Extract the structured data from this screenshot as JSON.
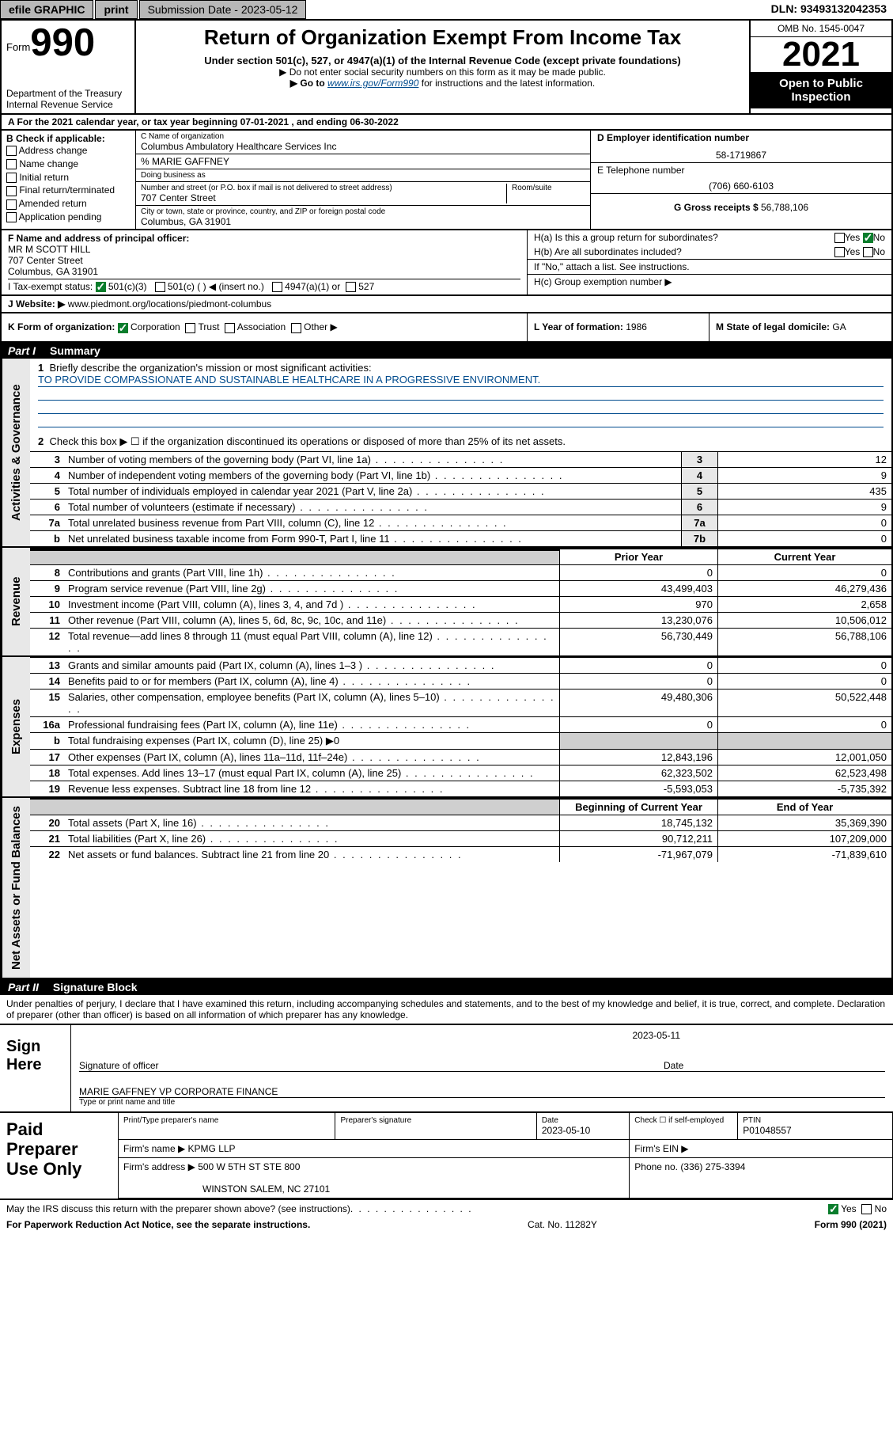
{
  "topbar": {
    "efile": "efile GRAPHIC",
    "print": "print",
    "submission": "Submission Date - 2023-05-12",
    "dln": "DLN: 93493132042353"
  },
  "header": {
    "form_prefix": "Form",
    "form_number": "990",
    "dept": "Department of the Treasury",
    "irs": "Internal Revenue Service",
    "title": "Return of Organization Exempt From Income Tax",
    "subtitle": "Under section 501(c), 527, or 4947(a)(1) of the Internal Revenue Code (except private foundations)",
    "note1": "▶ Do not enter social security numbers on this form as it may be made public.",
    "note2_prefix": "▶ Go to ",
    "note2_link": "www.irs.gov/Form990",
    "note2_suffix": " for instructions and the latest information.",
    "omb": "OMB No. 1545-0047",
    "year": "2021",
    "open": "Open to Public Inspection"
  },
  "row_a": "A For the 2021 calendar year, or tax year beginning 07-01-2021    , and ending 06-30-2022",
  "col_b": {
    "label": "B Check if applicable:",
    "addr": "Address change",
    "name": "Name change",
    "initial": "Initial return",
    "final": "Final return/terminated",
    "amended": "Amended return",
    "app": "Application pending"
  },
  "col_c": {
    "c_label": "C Name of organization",
    "c_val": "Columbus Ambulatory Healthcare Services Inc",
    "pct": "% MARIE GAFFNEY",
    "dba": "Doing business as",
    "street_label": "Number and street (or P.O. box if mail is not delivered to street address)",
    "room": "Room/suite",
    "street_val": "707 Center Street",
    "city_label": "City or town, state or province, country, and ZIP or foreign postal code",
    "city_val": "Columbus, GA  31901"
  },
  "col_right": {
    "d_label": "D Employer identification number",
    "d_val": "58-1719867",
    "e_label": "E Telephone number",
    "e_val": "(706) 660-6103",
    "g_label": "G Gross receipts $ ",
    "g_val": "56,788,106"
  },
  "f": {
    "label": "F  Name and address of principal officer:",
    "name": "MR M SCOTT HILL",
    "street": "707 Center Street",
    "city": "Columbus, GA  31901"
  },
  "h": {
    "a": "H(a)  Is this a group return for subordinates?",
    "a_yes": "Yes",
    "a_no": "No",
    "b": "H(b)  Are all subordinates included?",
    "b_yes": "Yes",
    "b_no": "No",
    "b_note": "If \"No,\" attach a list. See instructions.",
    "c": "H(c)  Group exemption number ▶"
  },
  "i": {
    "label": "I    Tax-exempt status:",
    "c3": "501(c)(3)",
    "c": "501(c) (  ) ◀ (insert no.)",
    "a1": "4947(a)(1) or",
    "s527": "527"
  },
  "j": {
    "label": "J   Website: ▶ ",
    "val": "www.piedmont.org/locations/piedmont-columbus"
  },
  "k": {
    "label": "K Form of organization:",
    "corp": "Corporation",
    "trust": "Trust",
    "assoc": "Association",
    "other": "Other ▶"
  },
  "l": {
    "label": "L Year of formation: ",
    "val": "1986"
  },
  "m": {
    "label": "M State of legal domicile: ",
    "val": "GA"
  },
  "part1": {
    "bar": "Part I",
    "title": "Summary",
    "l1": "Briefly describe the organization's mission or most significant activities:",
    "l1_text": "TO PROVIDE COMPASSIONATE AND SUSTAINABLE HEALTHCARE IN A PROGRESSIVE ENVIRONMENT.",
    "l2": "Check this box ▶ ☐  if the organization discontinued its operations or disposed of more than 25% of its net assets.",
    "rows_gov": [
      {
        "n": "3",
        "t": "Number of voting members of the governing body (Part VI, line 1a)",
        "box": "3",
        "v": "12"
      },
      {
        "n": "4",
        "t": "Number of independent voting members of the governing body (Part VI, line 1b)",
        "box": "4",
        "v": "9"
      },
      {
        "n": "5",
        "t": "Total number of individuals employed in calendar year 2021 (Part V, line 2a)",
        "box": "5",
        "v": "435"
      },
      {
        "n": "6",
        "t": "Total number of volunteers (estimate if necessary)",
        "box": "6",
        "v": "9"
      },
      {
        "n": "7a",
        "t": "Total unrelated business revenue from Part VIII, column (C), line 12",
        "box": "7a",
        "v": "0"
      },
      {
        "n": "b",
        "t": "Net unrelated business taxable income from Form 990-T, Part I, line 11",
        "box": "7b",
        "v": "0"
      }
    ],
    "hdr_prior": "Prior Year",
    "hdr_current": "Current Year",
    "rows_rev": [
      {
        "n": "8",
        "t": "Contributions and grants (Part VIII, line 1h)",
        "p": "0",
        "c": "0"
      },
      {
        "n": "9",
        "t": "Program service revenue (Part VIII, line 2g)",
        "p": "43,499,403",
        "c": "46,279,436"
      },
      {
        "n": "10",
        "t": "Investment income (Part VIII, column (A), lines 3, 4, and 7d )",
        "p": "970",
        "c": "2,658"
      },
      {
        "n": "11",
        "t": "Other revenue (Part VIII, column (A), lines 5, 6d, 8c, 9c, 10c, and 11e)",
        "p": "13,230,076",
        "c": "10,506,012"
      },
      {
        "n": "12",
        "t": "Total revenue—add lines 8 through 11 (must equal Part VIII, column (A), line 12)",
        "p": "56,730,449",
        "c": "56,788,106"
      }
    ],
    "rows_exp": [
      {
        "n": "13",
        "t": "Grants and similar amounts paid (Part IX, column (A), lines 1–3 )",
        "p": "0",
        "c": "0"
      },
      {
        "n": "14",
        "t": "Benefits paid to or for members (Part IX, column (A), line 4)",
        "p": "0",
        "c": "0"
      },
      {
        "n": "15",
        "t": "Salaries, other compensation, employee benefits (Part IX, column (A), lines 5–10)",
        "p": "49,480,306",
        "c": "50,522,448"
      },
      {
        "n": "16a",
        "t": "Professional fundraising fees (Part IX, column (A), line 11e)",
        "p": "0",
        "c": "0"
      },
      {
        "n": "b",
        "t": "Total fundraising expenses (Part IX, column (D), line 25) ▶0",
        "p": "",
        "c": "",
        "grey": true
      },
      {
        "n": "17",
        "t": "Other expenses (Part IX, column (A), lines 11a–11d, 11f–24e)",
        "p": "12,843,196",
        "c": "12,001,050"
      },
      {
        "n": "18",
        "t": "Total expenses. Add lines 13–17 (must equal Part IX, column (A), line 25)",
        "p": "62,323,502",
        "c": "62,523,498"
      },
      {
        "n": "19",
        "t": "Revenue less expenses. Subtract line 18 from line 12",
        "p": "-5,593,053",
        "c": "-5,735,392"
      }
    ],
    "hdr_begin": "Beginning of Current Year",
    "hdr_end": "End of Year",
    "rows_net": [
      {
        "n": "20",
        "t": "Total assets (Part X, line 16)",
        "p": "18,745,132",
        "c": "35,369,390"
      },
      {
        "n": "21",
        "t": "Total liabilities (Part X, line 26)",
        "p": "90,712,211",
        "c": "107,209,000"
      },
      {
        "n": "22",
        "t": "Net assets or fund balances. Subtract line 21 from line 20",
        "p": "-71,967,079",
        "c": "-71,839,610"
      }
    ]
  },
  "part2": {
    "bar": "Part II",
    "title": "Signature Block"
  },
  "penalty": "Under penalties of perjury, I declare that I have examined this return, including accompanying schedules and statements, and to the best of my knowledge and belief, it is true, correct, and complete. Declaration of preparer (other than officer) is based on all information of which preparer has any knowledge.",
  "sign": {
    "here": "Sign Here",
    "sig_officer": "Signature of officer",
    "date_label": "Date",
    "date_val": "2023-05-11",
    "name": "MARIE GAFFNEY VP CORPORATE FINANCE",
    "type_label": "Type or print name and title"
  },
  "paid": {
    "label": "Paid Preparer Use Only",
    "h1": "Print/Type preparer's name",
    "h2": "Preparer's signature",
    "h3": "Date",
    "h3v": "2023-05-10",
    "h4": "Check ☐ if self-employed",
    "h5": "PTIN",
    "h5v": "P01048557",
    "firm_name_l": "Firm's name    ▶ ",
    "firm_name": "KPMG LLP",
    "firm_ein_l": "Firm's EIN ▶",
    "firm_addr_l": "Firm's address ▶ ",
    "firm_addr1": "500 W 5TH ST STE 800",
    "firm_addr2": "WINSTON SALEM, NC  27101",
    "phone_l": "Phone no. ",
    "phone": "(336) 275-3394"
  },
  "footer": {
    "discuss": "May the IRS discuss this return with the preparer shown above? (see instructions)",
    "yes": "Yes",
    "no": "No",
    "pra": "For Paperwork Reduction Act Notice, see the separate instructions.",
    "cat": "Cat. No. 11282Y",
    "form": "Form 990 (2021)"
  },
  "tabs": {
    "gov": "Activities & Governance",
    "rev": "Revenue",
    "exp": "Expenses",
    "net": "Net Assets or Fund Balances"
  }
}
